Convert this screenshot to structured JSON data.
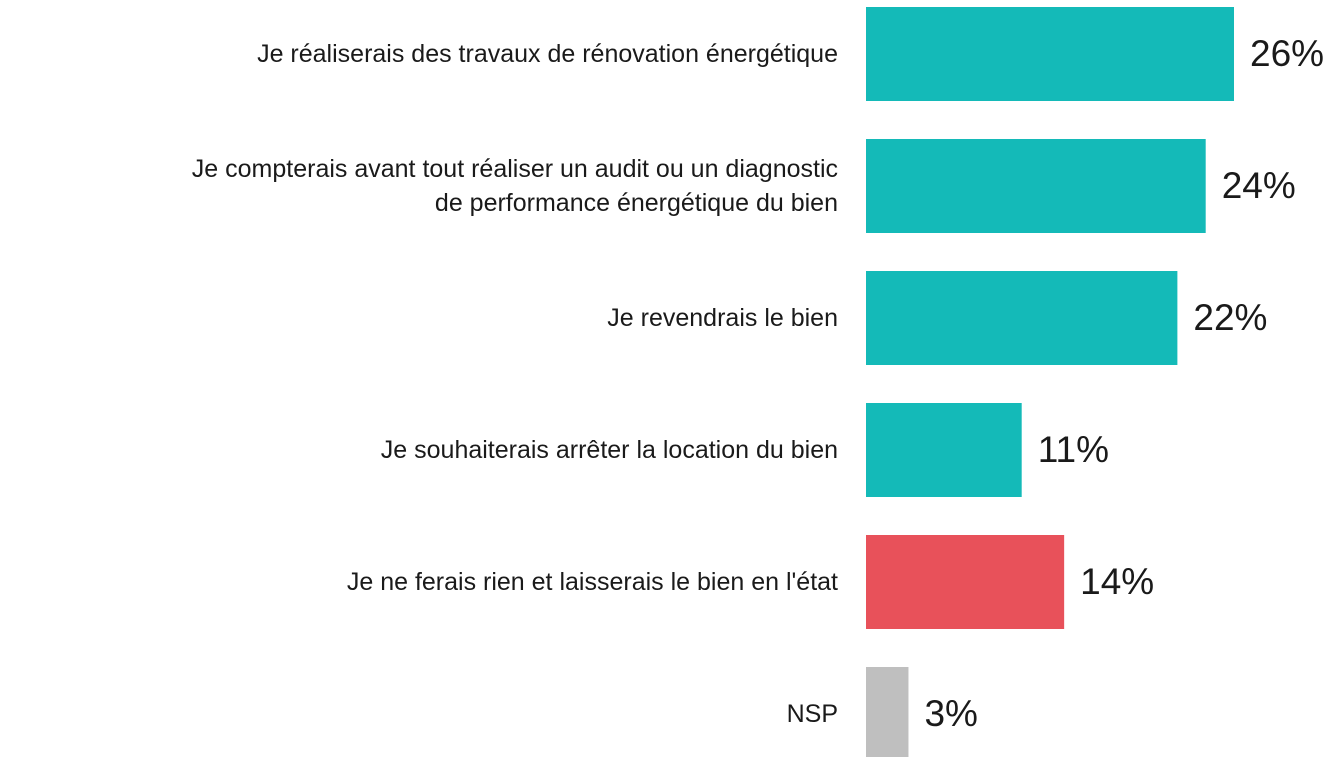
{
  "chart_data": {
    "type": "bar",
    "orientation": "horizontal",
    "categories": [
      "Je réaliserais des travaux de rénovation énergétique",
      "Je compterais avant tout réaliser un audit ou un diagnostic\nde performance énergétique du bien",
      "Je revendrais le bien",
      "Je souhaiterais arrêter la location du bien",
      "Je ne ferais rien et laisserais le bien en l'état",
      "NSP"
    ],
    "values": [
      26,
      24,
      22,
      11,
      14,
      3
    ],
    "value_labels": [
      "26%",
      "24%",
      "22%",
      "11%",
      "14%",
      "3%"
    ],
    "colors": [
      "#14bab8",
      "#14bab8",
      "#14bab8",
      "#14bab8",
      "#e8515a",
      "#bfbfbf"
    ]
  }
}
